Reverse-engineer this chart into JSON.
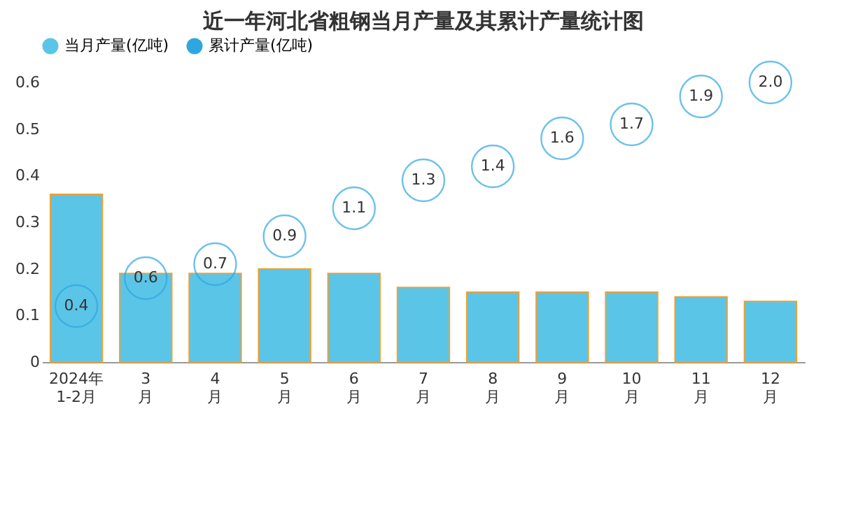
{
  "chart_data": {
    "type": "bar",
    "title": "近一年河北省粗钢当月产量及其累计产量统计图",
    "categories": [
      "2024年\n1-2月",
      "3\n月",
      "4\n月",
      "5\n月",
      "6\n月",
      "7\n月",
      "8\n月",
      "9\n月",
      "10\n月",
      "11\n月",
      "12\n月"
    ],
    "series": [
      {
        "name": "当月产量(亿吨)",
        "color": "#5bc5e8",
        "values": [
          0.36,
          0.19,
          0.19,
          0.2,
          0.19,
          0.16,
          0.15,
          0.15,
          0.15,
          0.14,
          0.13
        ]
      },
      {
        "name": "累计产量(亿吨)",
        "type": "scatter",
        "axis": "y2",
        "marker": "circle",
        "color": "#2ea7e0",
        "values": [
          0.4,
          0.6,
          0.7,
          0.9,
          1.1,
          1.3,
          1.4,
          1.6,
          1.7,
          1.9,
          2.0
        ],
        "value_labels": [
          "0.4",
          "0.6",
          "0.7",
          "0.9",
          "1.1",
          "1.3",
          "1.4",
          "1.6",
          "1.7",
          "1.9",
          "2.0"
        ]
      }
    ],
    "ylim": [
      0,
      0.6
    ],
    "yticks": [
      0,
      0.1,
      0.2,
      0.3,
      0.4,
      0.5,
      0.6
    ],
    "legend": "top"
  }
}
